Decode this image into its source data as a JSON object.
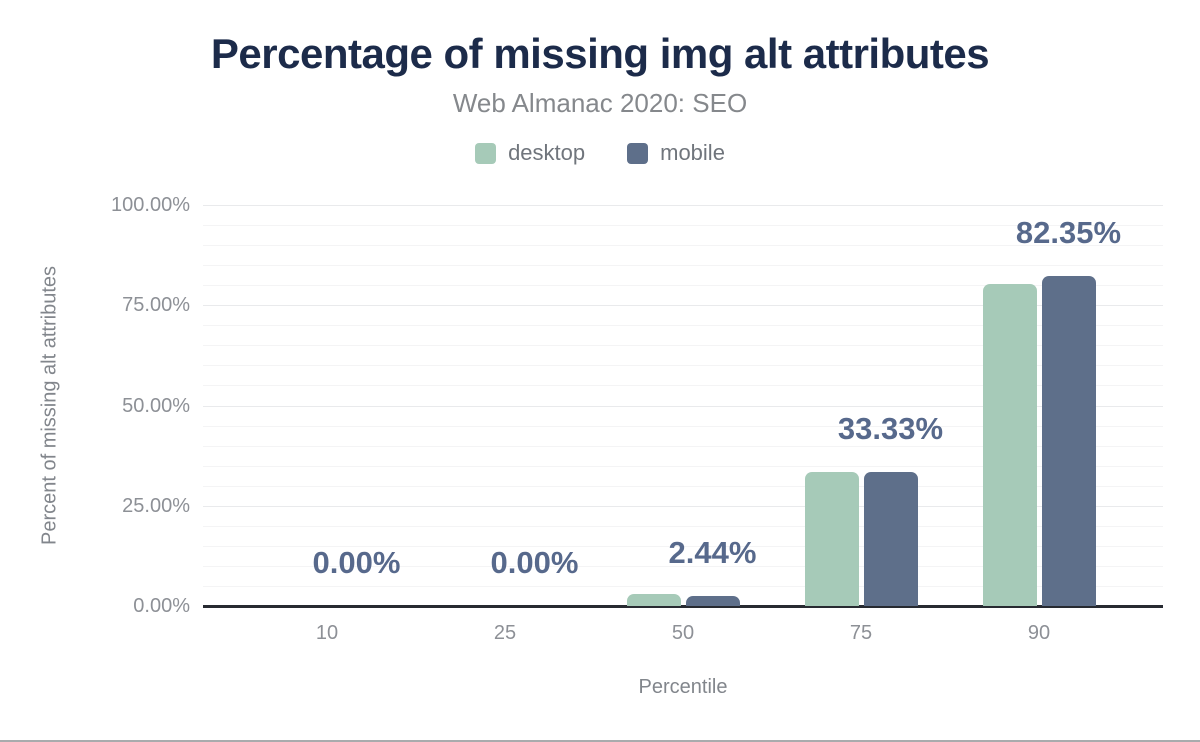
{
  "header": {
    "title": "Percentage of missing img alt attributes",
    "subtitle": "Web Almanac 2020: SEO"
  },
  "chart_data": {
    "type": "bar",
    "title": "Percentage of missing img alt attributes",
    "subtitle": "Web Almanac 2020: SEO",
    "xlabel": "Percentile",
    "ylabel": "Percent of missing alt attributes",
    "categories": [
      "10",
      "25",
      "50",
      "75",
      "90"
    ],
    "series": [
      {
        "name": "desktop",
        "color": "#a6cab8",
        "values": [
          0,
          0,
          3.1,
          33.33,
          80.4
        ]
      },
      {
        "name": "mobile",
        "color": "#5e6f8a",
        "values": [
          0,
          0,
          2.44,
          33.33,
          82.35
        ]
      }
    ],
    "value_labels": [
      "0.00%",
      "0.00%",
      "2.44%",
      "33.33%",
      "82.35%"
    ],
    "y_ticks": [
      {
        "value": 0,
        "label": "0.00%"
      },
      {
        "value": 25,
        "label": "25.00%"
      },
      {
        "value": 50,
        "label": "50.00%"
      },
      {
        "value": 75,
        "label": "75.00%"
      },
      {
        "value": 100,
        "label": "100.00%"
      }
    ],
    "ylim": [
      0,
      100
    ],
    "grid": {
      "minor_step": 5,
      "major_step": 25,
      "visible": true
    },
    "legend_position": "top"
  },
  "colors": {
    "title_text": "#1c2b4a",
    "subtitle_text": "#85888c",
    "value_label_text": "#57698c",
    "tick_text": "#8d9096",
    "axis_line": "#272a31",
    "desktop_bar": "#a6cab8",
    "mobile_bar": "#5e6f8a"
  }
}
